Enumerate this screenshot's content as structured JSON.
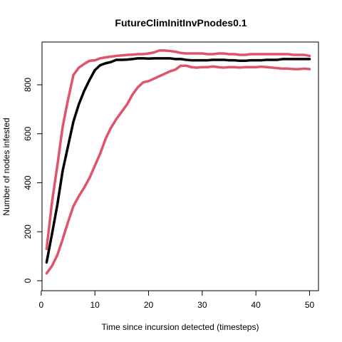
{
  "chart_data": {
    "type": "line",
    "title": "FutureClimInitInvPnodes0.1",
    "xlabel": "Time since incursion detected (timesteps)",
    "ylabel": "Number of nodes infested",
    "xlim": [
      0,
      50
    ],
    "ylim": [
      0,
      950
    ],
    "x_ticks": [
      0,
      10,
      20,
      30,
      40,
      50
    ],
    "y_ticks": [
      0,
      200,
      400,
      600,
      800
    ],
    "x_tick_labels": [
      "0",
      "10",
      "20",
      "30",
      "40",
      "50"
    ],
    "y_tick_labels": [
      "0",
      "200",
      "400",
      "600",
      "800"
    ],
    "grid": false,
    "legend": "none",
    "x": [
      1,
      2,
      3,
      4,
      5,
      6,
      7,
      8,
      9,
      10,
      11,
      12,
      13,
      14,
      15,
      16,
      17,
      18,
      19,
      20,
      21,
      22,
      23,
      24,
      25,
      26,
      27,
      28,
      29,
      30,
      31,
      32,
      33,
      34,
      35,
      36,
      37,
      38,
      39,
      40,
      41,
      42,
      43,
      44,
      45,
      46,
      47,
      48,
      49,
      50
    ],
    "series": [
      {
        "color": "#000000",
        "values": [
          75,
          190,
          310,
          450,
          550,
          650,
          720,
          775,
          820,
          860,
          880,
          888,
          893,
          902,
          902,
          903,
          905,
          908,
          908,
          907,
          908,
          908,
          908,
          908,
          905,
          905,
          902,
          900,
          900,
          900,
          900,
          902,
          902,
          902,
          900,
          900,
          898,
          898,
          900,
          900,
          900,
          902,
          902,
          902,
          905,
          905,
          905,
          905,
          905,
          905
        ]
      },
      {
        "color": "#DF536B",
        "values": [
          130,
          320,
          470,
          630,
          740,
          840,
          870,
          885,
          898,
          900,
          908,
          912,
          915,
          918,
          920,
          922,
          923,
          925,
          925,
          928,
          932,
          940,
          940,
          938,
          935,
          930,
          928,
          928,
          928,
          928,
          925,
          925,
          928,
          928,
          925,
          925,
          922,
          922,
          925,
          925,
          925,
          925,
          925,
          925,
          925,
          925,
          922,
          922,
          922,
          918
        ]
      },
      {
        "color": "#DF536B",
        "values": [
          30,
          60,
          105,
          170,
          240,
          305,
          345,
          380,
          420,
          470,
          520,
          580,
          625,
          660,
          690,
          720,
          760,
          790,
          810,
          815,
          825,
          835,
          845,
          855,
          862,
          878,
          878,
          872,
          870,
          872,
          872,
          875,
          872,
          870,
          872,
          872,
          870,
          872,
          872,
          872,
          874,
          872,
          870,
          868,
          866,
          866,
          864,
          864,
          866,
          864
        ]
      }
    ]
  }
}
